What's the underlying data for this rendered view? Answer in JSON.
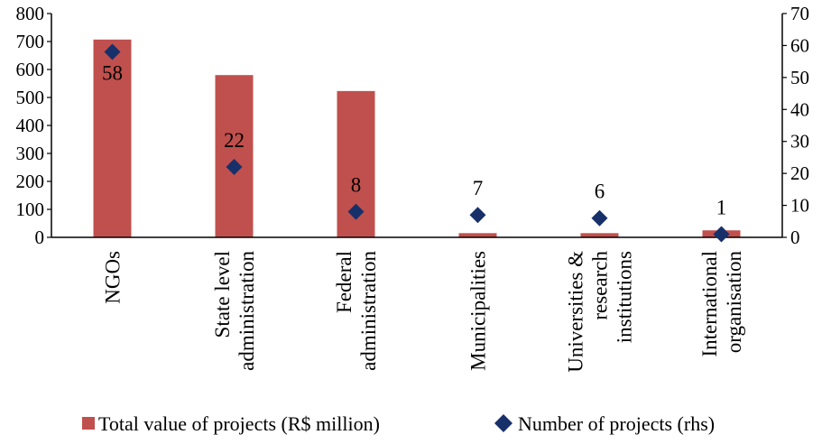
{
  "chart_data": {
    "type": "bar",
    "categories": [
      [
        "NGOs"
      ],
      [
        "State level",
        "administration"
      ],
      [
        "Federal",
        "administration"
      ],
      [
        "Municipalities"
      ],
      [
        "Universities &",
        "research",
        "institutions"
      ],
      [
        "International",
        "organisation"
      ]
    ],
    "series": [
      {
        "name": "Total value of projects (R$ million)",
        "type": "bar",
        "axis": "left",
        "color": "#c0504d",
        "values": [
          707,
          580,
          523,
          15,
          15,
          25
        ]
      },
      {
        "name": "Number of projects (rhs)",
        "type": "scatter",
        "axis": "right",
        "color": "#17306a",
        "marker": "diamond",
        "values": [
          58,
          22,
          8,
          7,
          6,
          1
        ],
        "data_labels": [
          "58",
          "22",
          "8",
          "7",
          "6",
          "1"
        ]
      }
    ],
    "y_left": {
      "min": 0,
      "max": 800,
      "step": 100
    },
    "y_right": {
      "min": 0,
      "max": 70,
      "step": 10
    },
    "legend_position": "bottom",
    "grid": false,
    "title": ""
  }
}
